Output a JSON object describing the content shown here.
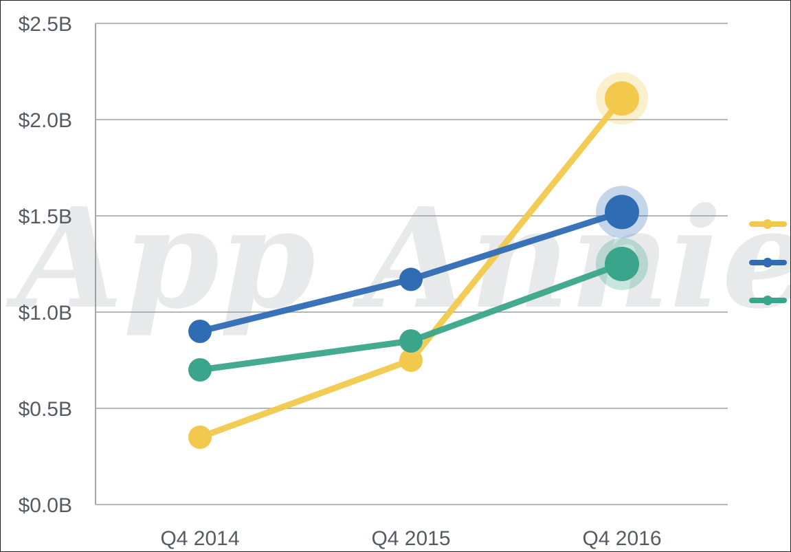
{
  "chart_data": {
    "type": "line",
    "title": "",
    "xlabel": "",
    "ylabel": "",
    "categories": [
      "Q4 2014",
      "Q4 2015",
      "Q4 2016"
    ],
    "ylim": [
      0,
      2.5
    ],
    "yticks": [
      0.0,
      0.5,
      1.0,
      1.5,
      2.0,
      2.5
    ],
    "ytick_labels": [
      "$0.0B",
      "$0.5B",
      "$1.0B",
      "$1.5B",
      "$2.0B",
      "$2.5B"
    ],
    "grid": true,
    "legend": "right",
    "watermark": "App Annie",
    "series": [
      {
        "color": "#f2c94c",
        "values": [
          0.35,
          0.75,
          2.11
        ]
      },
      {
        "color": "#2f6cb3",
        "values": [
          0.9,
          1.17,
          1.52
        ]
      },
      {
        "color": "#3aa58a",
        "values": [
          0.7,
          0.85,
          1.25
        ]
      }
    ]
  }
}
